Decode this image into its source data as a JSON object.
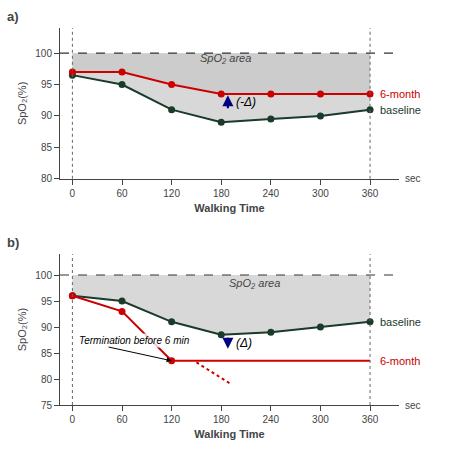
{
  "chart_data": [
    {
      "type": "line",
      "title": "a)",
      "x_label": "Walking Time",
      "y_label": "SpO₂(%)",
      "x_unit": "sec",
      "xlim": [
        -15,
        395
      ],
      "xticks": [
        0,
        60,
        120,
        180,
        240,
        300,
        360
      ],
      "ylim": [
        80,
        104
      ],
      "yticks": [
        80,
        85,
        90,
        95,
        100
      ],
      "grid": false,
      "series": [
        {
          "name": "baseline",
          "color": "#1a3a2a",
          "x": [
            0,
            60,
            120,
            180,
            240,
            300,
            360
          ],
          "values": [
            96.5,
            95,
            91,
            89,
            89.5,
            90,
            91
          ],
          "marker": "circle",
          "line_style": "solid",
          "fill_to": 100,
          "fill_color": "#c8c8c8"
        },
        {
          "name": "6-month",
          "color": "#cc0000",
          "x": [
            0,
            60,
            120,
            180,
            240,
            300,
            360
          ],
          "values": [
            97,
            97,
            95,
            93.5,
            93.5,
            93.5,
            93.5
          ],
          "marker": "circle",
          "line_style": "solid",
          "fill_to": 100,
          "fill_color": "#c8c8c8"
        }
      ],
      "hlines": [
        {
          "y": 100,
          "color": "#333333",
          "line_style": "dashed"
        }
      ],
      "vlines": [
        {
          "x": 0,
          "color": "#666666",
          "line_style": "dotted"
        },
        {
          "x": 360,
          "color": "#666666",
          "line_style": "dotted"
        }
      ],
      "annotations": [
        {
          "text": "SpO₂ area",
          "x": 185,
          "y": 98.0,
          "color": "#444444"
        }
      ],
      "arrows": [
        {
          "x": 188,
          "from": 91.0,
          "to": 93.3,
          "color": "#000080",
          "label": "(-Δ)"
        }
      ]
    },
    {
      "type": "line",
      "title": "b)",
      "x_label": "Walking Time",
      "y_label": "SpO₂(%)",
      "x_unit": "sec",
      "xlim": [
        -15,
        395
      ],
      "xticks": [
        0,
        60,
        120,
        180,
        240,
        300,
        360
      ],
      "ylim": [
        75,
        104
      ],
      "yticks": [
        75,
        80,
        85,
        90,
        95,
        100
      ],
      "grid": false,
      "series": [
        {
          "name": "baseline",
          "color": "#1a3a2a",
          "x": [
            0,
            60,
            120,
            180,
            240,
            300,
            360
          ],
          "values": [
            96,
            95,
            91,
            88.5,
            89,
            90,
            91
          ],
          "marker": "circle",
          "line_style": "solid",
          "fill_to": 100,
          "fill_color": "#c8c8c8"
        },
        {
          "name": "6-month",
          "color": "#cc0000",
          "x": [
            0,
            60,
            120
          ],
          "values": [
            96,
            93,
            83.5
          ],
          "marker": "circle",
          "line_style": "solid"
        },
        {
          "name": "6-month",
          "color": "#cc0000",
          "x": [
            120,
            360
          ],
          "values": [
            83.5,
            83.5
          ],
          "marker": "none",
          "line_style": "solid"
        },
        {
          "color": "#cc0000",
          "x": [
            150,
            190
          ],
          "values": [
            83.2,
            79.2
          ],
          "marker": "none",
          "line_style": "dotted"
        }
      ],
      "hlines": [
        {
          "y": 100,
          "color": "#333333",
          "line_style": "dashed"
        }
      ],
      "vlines": [
        {
          "x": 0,
          "color": "#666666",
          "line_style": "dotted"
        },
        {
          "x": 360,
          "color": "#666666",
          "line_style": "dotted"
        }
      ],
      "annotations": [
        {
          "text": "SpO₂ area",
          "x": 220,
          "y": 97.0,
          "color": "#444444"
        },
        {
          "text": "Termination before 6 min",
          "x": 5,
          "y": 87.5,
          "arrow_to": [
            120,
            83.5
          ]
        }
      ],
      "arrows": [
        {
          "x": 188,
          "from": 88.2,
          "to": 85.8,
          "color": "#000080",
          "label": "(Δ)"
        }
      ]
    }
  ]
}
